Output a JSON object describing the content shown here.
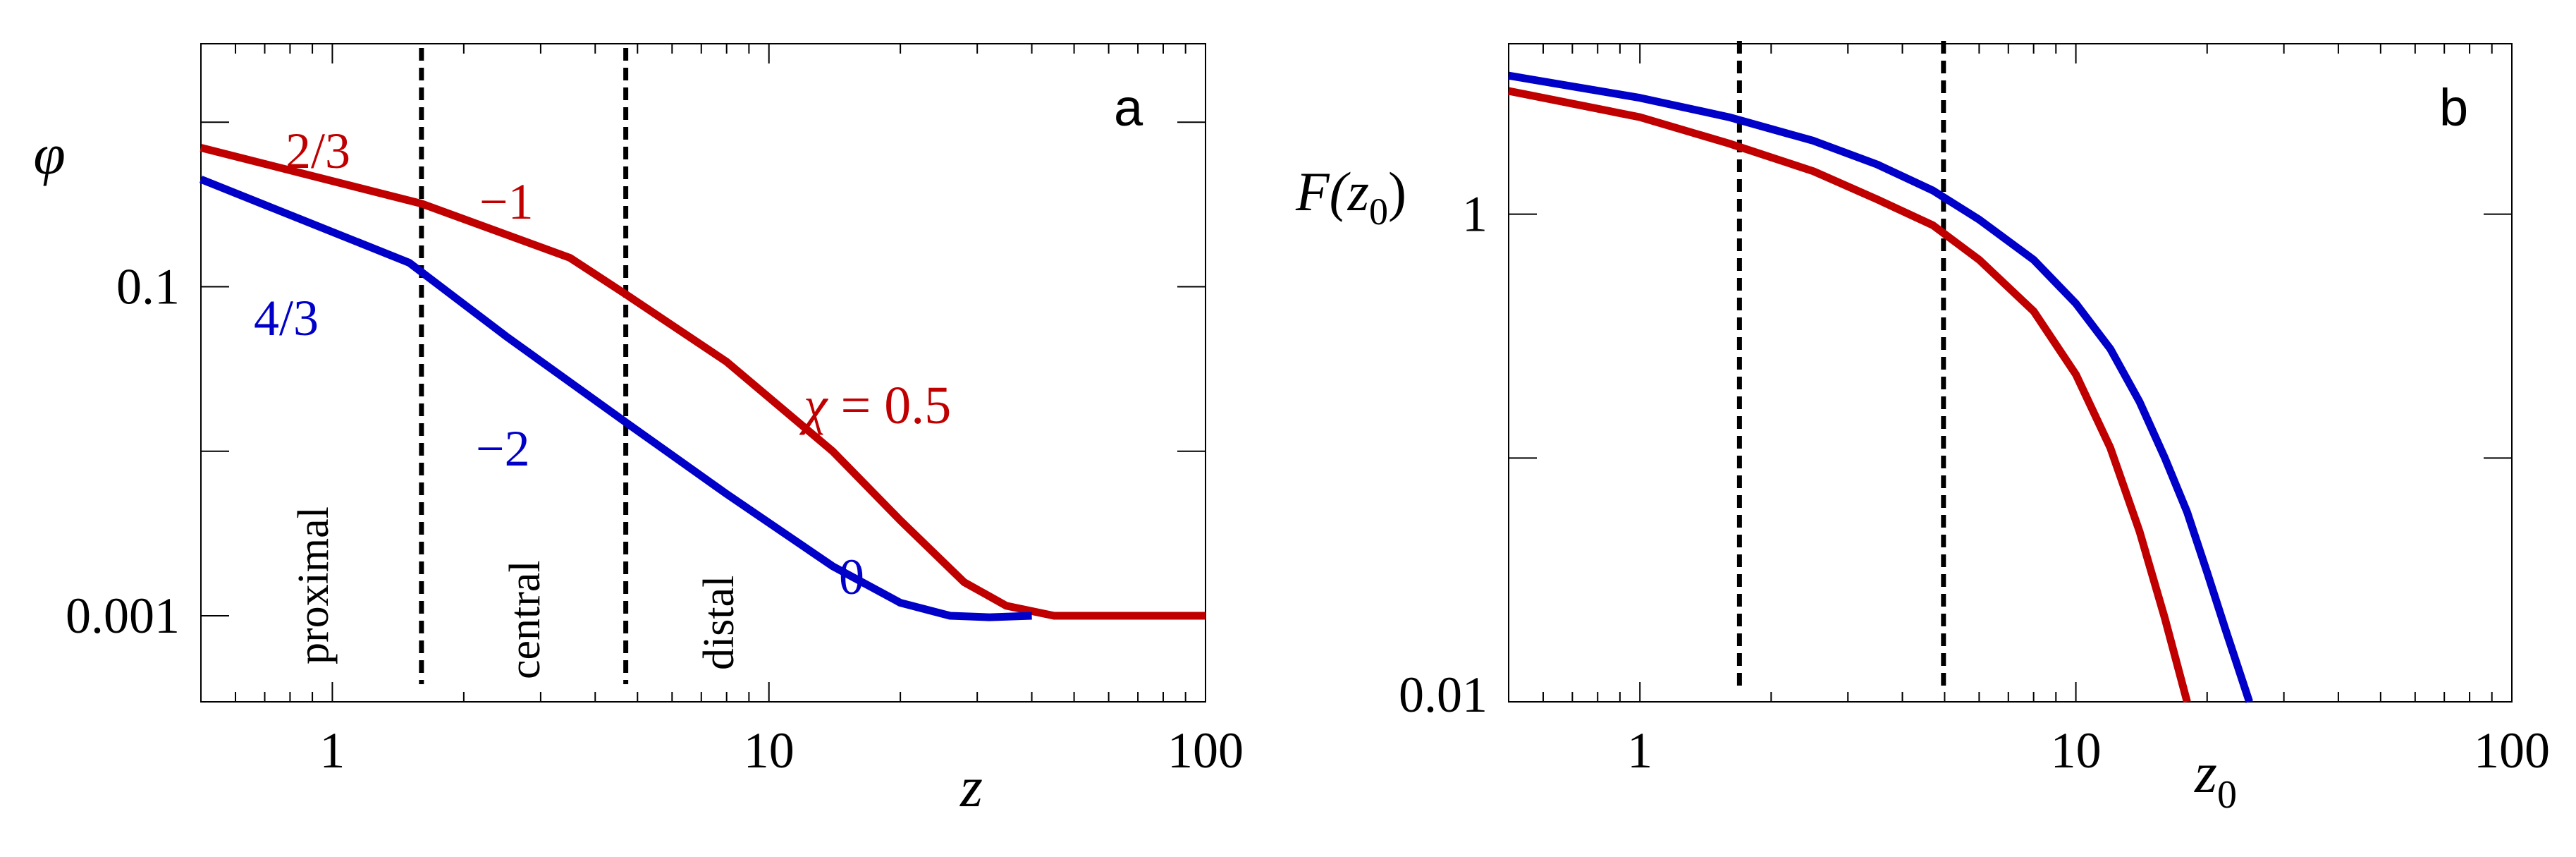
{
  "chart_data": [
    {
      "type": "line",
      "panel_label": "a",
      "x_scale": "log",
      "y_scale": "log",
      "xlabel": "z",
      "ylabel": "φ",
      "xlim": [
        0.5,
        100
      ],
      "ylim": [
        0.0003,
        3
      ],
      "x_ticks": [
        {
          "value": 1,
          "label": "1"
        },
        {
          "value": 10,
          "label": "10"
        },
        {
          "value": 100,
          "label": "100"
        }
      ],
      "y_ticks": [
        {
          "value": 0.1,
          "label": "0.1"
        },
        {
          "value": 0.001,
          "label": "0.001"
        }
      ],
      "y_minor_ticks": [
        1,
        0.01
      ],
      "vlines": [
        1.6,
        4.7
      ],
      "regions": [
        "proximal",
        "central",
        "distal"
      ],
      "series": [
        {
          "name": "χ = 0.5",
          "color": "#c00000",
          "x": [
            0.5,
            1.6,
            3.5,
            4.7,
            8,
            14,
            20,
            28,
            35,
            45,
            60,
            100
          ],
          "y": [
            0.7,
            0.32,
            0.15,
            0.09,
            0.035,
            0.01,
            0.0038,
            0.0016,
            0.00115,
            0.001,
            0.001,
            0.001
          ]
        },
        {
          "name": "",
          "color": "#0000c8",
          "x": [
            0.5,
            1.5,
            2.5,
            4.7,
            8,
            14,
            20,
            26,
            32,
            40
          ],
          "y": [
            0.45,
            0.14,
            0.05,
            0.015,
            0.0055,
            0.002,
            0.0012,
            0.001,
            0.00098,
            0.001
          ]
        }
      ],
      "annotations": [
        {
          "text": "2/3",
          "color": "#c00000"
        },
        {
          "text": "−1",
          "color": "#c00000"
        },
        {
          "text": "χ",
          "color": "#c00000"
        },
        {
          "text": "= 0.5",
          "color": "#c00000"
        },
        {
          "text": "4/3",
          "color": "#0000c8"
        },
        {
          "text": "−2",
          "color": "#0000c8"
        },
        {
          "text": "0",
          "color": "#0000c8"
        }
      ]
    },
    {
      "type": "line",
      "panel_label": "b",
      "x_scale": "log",
      "y_scale": "log",
      "xlabel": "z",
      "xlabel_sub": "0",
      "ylabel": "F(z",
      "ylabel_sub": "0",
      "ylabel_close": ")",
      "xlim": [
        0.5,
        100
      ],
      "ylim": [
        0.01,
        5
      ],
      "x_ticks": [
        {
          "value": 1,
          "label": "1"
        },
        {
          "value": 10,
          "label": "10"
        },
        {
          "value": 100,
          "label": "100"
        }
      ],
      "y_ticks": [
        {
          "value": 1,
          "label": "1"
        },
        {
          "value": 0.01,
          "label": "0.01"
        }
      ],
      "y_minor_ticks": [
        0.1
      ],
      "vlines": [
        1.6,
        4.7
      ],
      "series": [
        {
          "name": "blue",
          "color": "#0000c8",
          "x": [
            0.5,
            1,
            1.6,
            2.5,
            3.5,
            4.7,
            6,
            8,
            10,
            12,
            14,
            16,
            18,
            20,
            22,
            25
          ],
          "y": [
            3.7,
            3.0,
            2.5,
            2.0,
            1.6,
            1.25,
            0.95,
            0.65,
            0.43,
            0.28,
            0.17,
            0.1,
            0.06,
            0.034,
            0.02,
            0.01
          ]
        },
        {
          "name": "red",
          "color": "#c00000",
          "x": [
            0.5,
            1,
            1.6,
            2.5,
            3.5,
            4.7,
            6,
            8,
            10,
            12,
            14,
            16,
            18
          ],
          "y": [
            3.2,
            2.5,
            1.95,
            1.5,
            1.15,
            0.9,
            0.65,
            0.4,
            0.22,
            0.11,
            0.05,
            0.022,
            0.01
          ]
        }
      ]
    }
  ]
}
